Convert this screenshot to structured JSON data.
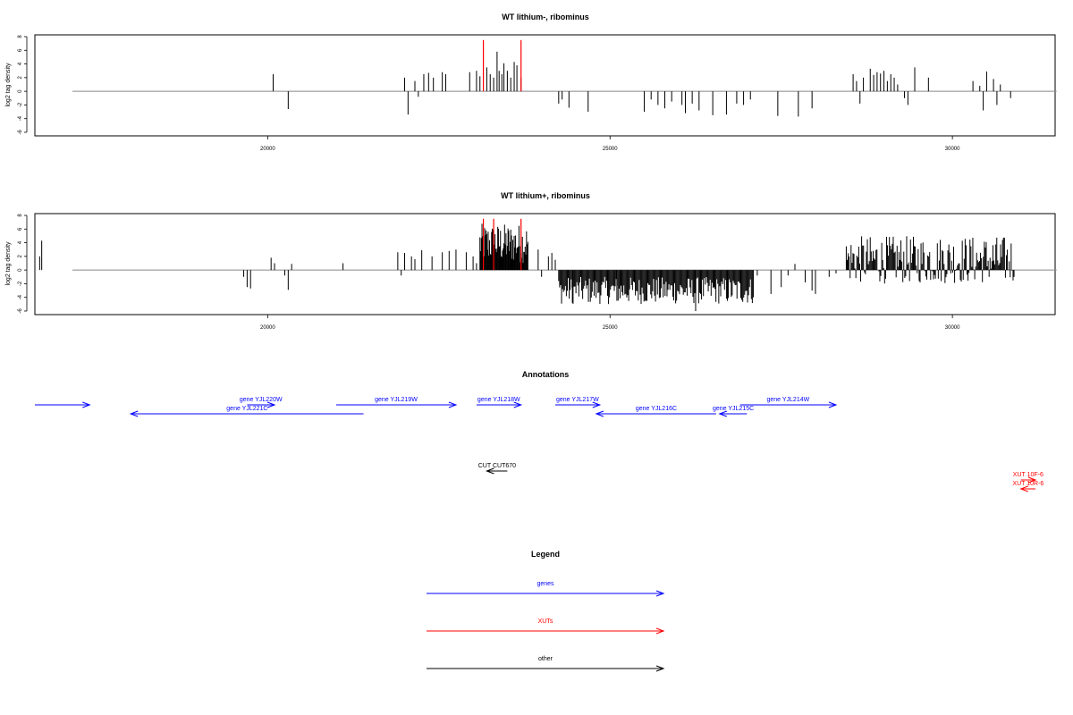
{
  "colors": {
    "gene": "#0000ff",
    "xut": "#ff0000",
    "other": "#000000",
    "bar": "#000000",
    "highlight": "#ff0000",
    "zero_line": "#888888"
  },
  "chart_data": [
    {
      "type": "bar",
      "title": "WT lithium-, ribominus",
      "ylabel": "log2 tag density",
      "xlim": [
        16600,
        31500
      ],
      "ylim": [
        -6,
        8
      ],
      "x_ticks": [
        20000,
        25000,
        30000
      ],
      "y_ticks": [
        8,
        6,
        4,
        2,
        0,
        -2,
        -4,
        -6
      ],
      "zero_line_range": [
        16600,
        31000
      ],
      "highlight_positions": [
        23150,
        23700
      ],
      "highlight_height": 7.5,
      "bars": [
        [
          20080,
          2.5
        ],
        [
          20300,
          -2.6
        ],
        [
          22000,
          2.0
        ],
        [
          22050,
          -3.4
        ],
        [
          22150,
          1.5
        ],
        [
          22200,
          -0.8
        ],
        [
          22280,
          2.5
        ],
        [
          22350,
          2.7
        ],
        [
          22420,
          2.0
        ],
        [
          22550,
          2.8
        ],
        [
          22600,
          2.5
        ],
        [
          22950,
          2.8
        ],
        [
          23050,
          3.0
        ],
        [
          23100,
          2.2
        ],
        [
          23200,
          3.5
        ],
        [
          23250,
          2.5
        ],
        [
          23300,
          2.0
        ],
        [
          23350,
          5.8
        ],
        [
          23380,
          3.0
        ],
        [
          23420,
          2.5
        ],
        [
          23450,
          4.1
        ],
        [
          23500,
          3.0
        ],
        [
          23550,
          2.0
        ],
        [
          23600,
          4.3
        ],
        [
          23640,
          3.8
        ],
        [
          23700,
          2.0
        ],
        [
          24250,
          -1.8
        ],
        [
          24300,
          -1.2
        ],
        [
          24400,
          -2.4
        ],
        [
          24680,
          -3.0
        ],
        [
          25500,
          -3.0
        ],
        [
          25600,
          -1.2
        ],
        [
          25700,
          -2.0
        ],
        [
          25800,
          -2.5
        ],
        [
          25900,
          -1.5
        ],
        [
          26050,
          -2.0
        ],
        [
          26100,
          -3.2
        ],
        [
          26200,
          -1.8
        ],
        [
          26300,
          -2.8
        ],
        [
          26500,
          -3.5
        ],
        [
          26700,
          -3.4
        ],
        [
          26850,
          -1.8
        ],
        [
          26950,
          -2.0
        ],
        [
          27050,
          -1.2
        ],
        [
          27450,
          -3.6
        ],
        [
          27750,
          -3.7
        ],
        [
          27950,
          -2.5
        ],
        [
          28550,
          2.5
        ],
        [
          28600,
          1.5
        ],
        [
          28650,
          -1.8
        ],
        [
          28700,
          2.0
        ],
        [
          28800,
          3.3
        ],
        [
          28850,
          2.4
        ],
        [
          28900,
          2.8
        ],
        [
          28950,
          2.6
        ],
        [
          29000,
          3.0
        ],
        [
          29050,
          1.5
        ],
        [
          29100,
          2.5
        ],
        [
          29150,
          2.0
        ],
        [
          29200,
          1.0
        ],
        [
          29300,
          -1.0
        ],
        [
          29350,
          -2.0
        ],
        [
          29450,
          3.5
        ],
        [
          29650,
          2.0
        ],
        [
          30300,
          1.5
        ],
        [
          30400,
          0.8
        ],
        [
          30450,
          -2.8
        ],
        [
          30500,
          2.9
        ],
        [
          30600,
          1.8
        ],
        [
          30650,
          -2.0
        ],
        [
          30700,
          1.0
        ],
        [
          30850,
          -1.0
        ]
      ]
    },
    {
      "type": "bar",
      "title": "WT lithium+, ribominus",
      "ylabel": "log2 tag density",
      "xlim": [
        16600,
        31500
      ],
      "ylim": [
        -6,
        8
      ],
      "x_ticks": [
        20000,
        25000,
        30000
      ],
      "y_ticks": [
        8,
        6,
        4,
        2,
        0,
        -2,
        -4,
        -6
      ],
      "zero_line_range": [
        16600,
        31000
      ],
      "highlight_positions": [
        23150,
        23300,
        23700
      ],
      "highlight_height": 7.5,
      "bars": [
        [
          16670,
          2.0
        ],
        [
          16700,
          4.3
        ],
        [
          19650,
          -1.0
        ],
        [
          19700,
          -2.5
        ],
        [
          19750,
          -2.7
        ],
        [
          20050,
          1.8
        ],
        [
          20100,
          1.0
        ],
        [
          20250,
          -0.8
        ],
        [
          20300,
          -2.9
        ],
        [
          20350,
          0.9
        ],
        [
          21100,
          1.0
        ],
        [
          21900,
          2.6
        ],
        [
          21950,
          -0.8
        ],
        [
          22000,
          2.5
        ],
        [
          22100,
          2.0
        ],
        [
          22150,
          1.6
        ],
        [
          22250,
          2.9
        ],
        [
          22400,
          2.0
        ],
        [
          22550,
          2.6
        ],
        [
          22650,
          2.8
        ],
        [
          22750,
          3.0
        ],
        [
          22900,
          2.6
        ],
        [
          23000,
          2.0
        ],
        [
          23050,
          1.0
        ],
        [
          23950,
          3.0
        ],
        [
          24000,
          -1.0
        ],
        [
          24100,
          2.0
        ],
        [
          24150,
          2.5
        ],
        [
          24200,
          1.5
        ],
        [
          27150,
          -0.8
        ],
        [
          27350,
          -3.5
        ],
        [
          27500,
          -2.5
        ],
        [
          27600,
          -0.8
        ],
        [
          27700,
          0.9
        ],
        [
          27850,
          -1.8
        ],
        [
          27950,
          -3.0
        ],
        [
          28000,
          -3.5
        ],
        [
          28200,
          -1.0
        ],
        [
          28300,
          -0.5
        ]
      ],
      "dense_regions": [
        {
          "range": [
            23100,
            23800
          ],
          "min": 1.0,
          "max": 6.8,
          "step": 10
        },
        {
          "range": [
            24250,
            27100
          ],
          "min": -5.0,
          "max": -1.0,
          "step": 14
        },
        {
          "range": [
            28450,
            30900
          ],
          "min": -2.0,
          "max": 5.0,
          "step": 14
        }
      ],
      "extra_negative_peaks": [
        [
          26250,
          -6.0
        ],
        [
          24450,
          -4.8
        ],
        [
          25100,
          -4.5
        ]
      ]
    }
  ],
  "annotations": {
    "title": "Annotations",
    "xlim": [
      16600,
      31500
    ],
    "features": [
      {
        "label": "",
        "kind": "gene",
        "start": 16600,
        "end": 17400,
        "row": 0
      },
      {
        "label": "gene YJL221C",
        "kind": "gene",
        "start": 21400,
        "end": 18000,
        "row": 1
      },
      {
        "label": "gene YJL220W",
        "kind": "gene",
        "start": 19700,
        "end": 20100,
        "row": 0
      },
      {
        "label": "gene YJL219W",
        "kind": "gene",
        "start": 21000,
        "end": 22750,
        "row": 0
      },
      {
        "label": "gene YJL218W",
        "kind": "gene",
        "start": 23050,
        "end": 23700,
        "row": 0
      },
      {
        "label": "gene YJL217W",
        "kind": "gene",
        "start": 24200,
        "end": 24850,
        "row": 0
      },
      {
        "label": "gene YJL216C",
        "kind": "gene",
        "start": 26550,
        "end": 24800,
        "row": 1
      },
      {
        "label": "gene YJL215C",
        "kind": "gene",
        "start": 27000,
        "end": 26600,
        "row": 1
      },
      {
        "label": "gene YJL214W",
        "kind": "gene",
        "start": 26900,
        "end": 28300,
        "row": 0
      },
      {
        "label": "CUT CUT670",
        "kind": "other",
        "start": 23500,
        "end": 23200,
        "row": 2
      },
      {
        "label": "XUT 10F-6",
        "kind": "xut",
        "start": 31000,
        "end": 32000,
        "row": 3
      },
      {
        "label": "XUT 10R-6",
        "kind": "xut",
        "start": 31500,
        "end": 31000,
        "row": 4
      }
    ]
  },
  "legend": {
    "title": "Legend",
    "items": [
      {
        "label": "genes",
        "kind": "gene"
      },
      {
        "label": "XUTs",
        "kind": "xut"
      },
      {
        "label": "other",
        "kind": "other"
      }
    ]
  }
}
